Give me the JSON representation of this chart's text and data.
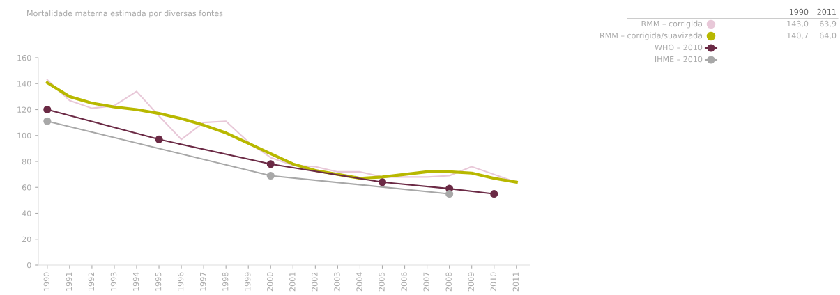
{
  "chart_data": {
    "type": "line",
    "title": "Mortalidade materna estimada por diversas fontes",
    "x": [
      1990,
      1991,
      1992,
      1993,
      1994,
      1995,
      1996,
      1997,
      1998,
      1999,
      2000,
      2001,
      2002,
      2003,
      2004,
      2005,
      2006,
      2007,
      2008,
      2009,
      2010,
      2011
    ],
    "xlim": [
      1989.6,
      2011.6
    ],
    "xticks": [
      1990,
      1991,
      1992,
      1993,
      1994,
      1995,
      1996,
      1997,
      1998,
      1999,
      2000,
      2001,
      2002,
      2003,
      2004,
      2005,
      2006,
      2007,
      2008,
      2009,
      2010,
      2011
    ],
    "ylim": [
      0,
      160
    ],
    "yticks": [
      0,
      20,
      40,
      60,
      80,
      100,
      120,
      140,
      160
    ],
    "grid": false,
    "legend": "right",
    "annotations": [
      "1990",
      "2011",
      "143,0",
      "63,9",
      "140,7",
      "64,0"
    ],
    "series": [
      {
        "name": "RMM – corrigida",
        "color": "#e8c8d8",
        "marker": "none",
        "values": [
          143.0,
          127,
          121,
          123,
          134,
          115,
          97,
          110,
          111,
          95,
          83,
          77,
          76,
          72,
          72,
          68,
          68,
          68,
          69,
          76,
          70,
          63.9
        ]
      },
      {
        "name": "RMM – corrigida/suavizada",
        "color": "#b8b800",
        "marker": "none",
        "values": [
          140.7,
          130,
          125,
          122,
          120,
          117,
          113,
          108,
          102,
          94,
          86,
          78,
          73,
          70,
          67,
          68,
          70,
          72,
          72,
          71,
          67,
          64.0
        ]
      },
      {
        "name": "WHO – 2010",
        "color": "#6b2a45",
        "marker": "circle",
        "x": [
          1990,
          1995,
          2000,
          2005,
          2008,
          2010
        ],
        "values": [
          120,
          97,
          78,
          64,
          59,
          55
        ]
      },
      {
        "name": "IHME – 2010",
        "color": "#a8a8a8",
        "marker": "circle",
        "x": [
          1990,
          2000,
          2008
        ],
        "values": [
          111,
          69,
          55
        ]
      }
    ]
  }
}
